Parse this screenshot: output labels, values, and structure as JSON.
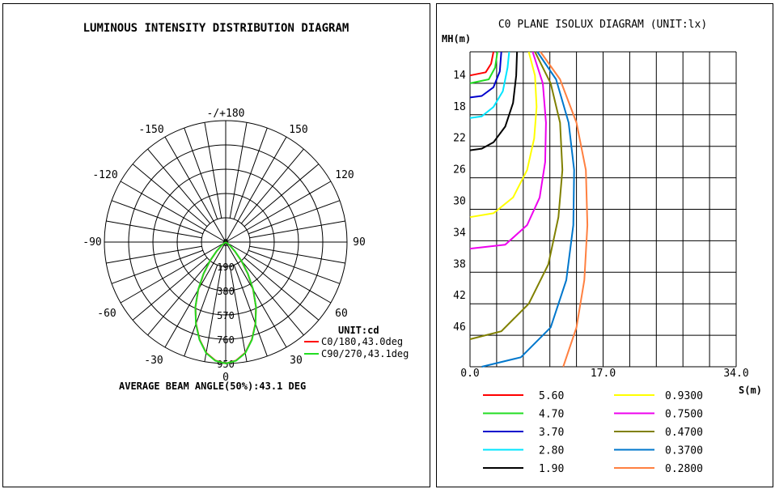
{
  "chart_data": [
    {
      "type": "polar",
      "title": "LUMINOUS INTENSITY DISTRIBUTION DIAGRAM",
      "angle_labels": [
        {
          "angle": 0,
          "text": "0"
        },
        {
          "angle": 30,
          "text": "30"
        },
        {
          "angle": 60,
          "text": "60"
        },
        {
          "angle": 90,
          "text": "90"
        },
        {
          "angle": 120,
          "text": "120"
        },
        {
          "angle": 150,
          "text": "150"
        },
        {
          "angle": 180,
          "text": "-/+180"
        },
        {
          "angle": -150,
          "text": "-150"
        },
        {
          "angle": -120,
          "text": "-120"
        },
        {
          "angle": -90,
          "text": "-90"
        },
        {
          "angle": -60,
          "text": "-60"
        },
        {
          "angle": -30,
          "text": "-30"
        }
      ],
      "radial_ticks": [
        0,
        190,
        380,
        570,
        760,
        950
      ],
      "rmax": 950,
      "unit_label": "UNIT:cd",
      "series": [
        {
          "name": "C0/180,43.0deg",
          "color": "#ff0000",
          "angles": [
            0,
            5,
            10,
            15,
            20,
            25,
            30,
            35,
            40,
            45,
            50,
            55,
            60
          ],
          "values": [
            950,
            930,
            880,
            790,
            680,
            560,
            430,
            300,
            190,
            100,
            45,
            15,
            0
          ]
        },
        {
          "name": "C90/270,43.1deg",
          "color": "#22dd22",
          "angles": [
            0,
            5,
            10,
            15,
            20,
            25,
            30,
            35,
            40,
            45,
            50,
            55,
            60
          ],
          "values": [
            950,
            932,
            882,
            792,
            682,
            562,
            432,
            302,
            192,
            102,
            46,
            15,
            0
          ]
        }
      ],
      "footer": "AVERAGE BEAM ANGLE(50%):43.1 DEG"
    },
    {
      "type": "line",
      "title": "C0 PLANE ISOLUX DIAGRAM (UNIT:lx)",
      "ylabel": "MH(m)",
      "xlabel": "S(m)",
      "xlim": [
        0,
        34
      ],
      "ylim": [
        10,
        50
      ],
      "x_ticks": [
        0,
        17,
        34
      ],
      "x_tick_labels": [
        "0.0",
        "17.0",
        "34.0"
      ],
      "y_ticks": [
        14,
        18,
        22,
        26,
        30,
        34,
        38,
        42,
        46
      ],
      "series": [
        {
          "name": "5.60",
          "color": "#ff0000",
          "x": [
            3.0,
            2.7,
            2.0,
            0.0
          ],
          "y": [
            10,
            11.5,
            12.6,
            13.0
          ]
        },
        {
          "name": "4.70",
          "color": "#22dd22",
          "x": [
            3.5,
            3.2,
            2.4,
            0.0
          ],
          "y": [
            10,
            12.0,
            13.5,
            14.0
          ]
        },
        {
          "name": "3.70",
          "color": "#0000cc",
          "x": [
            4.0,
            3.8,
            3.0,
            1.5,
            0.0
          ],
          "y": [
            10,
            12.5,
            14.5,
            15.6,
            15.8
          ]
        },
        {
          "name": "2.80",
          "color": "#00e5ff",
          "x": [
            5.0,
            4.8,
            4.2,
            3.0,
            1.5,
            0.0
          ],
          "y": [
            10,
            12.0,
            15.0,
            17.0,
            18.2,
            18.4
          ]
        },
        {
          "name": "1.90",
          "color": "#000000",
          "x": [
            6.0,
            5.9,
            5.5,
            4.5,
            3.0,
            1.5,
            0.0
          ],
          "y": [
            10,
            13.0,
            16.5,
            19.5,
            21.5,
            22.3,
            22.5
          ]
        },
        {
          "name": "0.9300",
          "color": "#ffff00",
          "x": [
            7.5,
            8.3,
            8.5,
            8.2,
            7.3,
            5.5,
            3.0,
            0.0
          ],
          "y": [
            10,
            13.0,
            17.0,
            21.0,
            25.0,
            28.5,
            30.5,
            31.0
          ]
        },
        {
          "name": "0.7500",
          "color": "#ee00ee",
          "x": [
            8.0,
            9.3,
            9.7,
            9.6,
            8.9,
            7.3,
            4.5,
            0.0
          ],
          "y": [
            10,
            14.0,
            19.0,
            24.0,
            28.5,
            32.0,
            34.5,
            35.0
          ]
        },
        {
          "name": "0.4700",
          "color": "#808000",
          "x": [
            8.3,
            10.3,
            11.5,
            11.8,
            11.3,
            10.0,
            7.5,
            4.0,
            0.0
          ],
          "y": [
            10,
            14.0,
            19.0,
            25.0,
            31.0,
            37.0,
            42.0,
            45.5,
            46.5
          ]
        },
        {
          "name": "0.3700",
          "color": "#0077cc",
          "x": [
            8.6,
            11.0,
            12.6,
            13.3,
            13.2,
            12.3,
            10.3,
            6.5,
            1.5
          ],
          "y": [
            10,
            13.5,
            19.0,
            25.0,
            32.0,
            39.0,
            45.0,
            48.8,
            50.0
          ]
        },
        {
          "name": "0.2800",
          "color": "#ff8040",
          "x": [
            9.0,
            11.5,
            13.6,
            14.8,
            15.0,
            14.6,
            13.6,
            11.9
          ],
          "y": [
            10,
            13.5,
            19.0,
            25.0,
            32.0,
            39.0,
            45.0,
            50.0
          ]
        }
      ]
    }
  ]
}
